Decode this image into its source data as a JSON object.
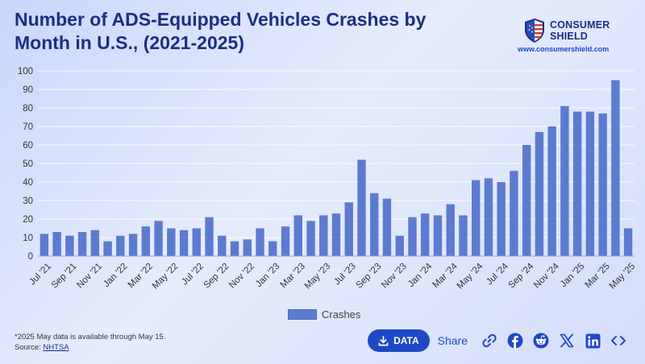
{
  "header": {
    "title": "Number of ADS-Equipped Vehicles Crashes by Month in U.S., (2021-2025)"
  },
  "brand": {
    "name_line1": "CONSUMER",
    "name_line2": "SHIELD",
    "url": "www.consumershield.com"
  },
  "chart_data": {
    "type": "bar",
    "title": "Number of ADS-Equipped Vehicles Crashes by Month in U.S., (2021-2025)",
    "categories": [
      "Jul '21",
      "Aug '21",
      "Sep '21",
      "Oct '21",
      "Nov '21",
      "Dec '21",
      "Jan '22",
      "Feb '22",
      "Mar '22",
      "Apr '22",
      "May '22",
      "Jun '22",
      "Jul '22",
      "Aug '22",
      "Sep '22",
      "Oct '22",
      "Nov '22",
      "Dec '22",
      "Jan '23",
      "Feb '23",
      "Mar '23",
      "Apr '23",
      "May '23",
      "Jun '23",
      "Jul '23",
      "Aug '23",
      "Sep '23",
      "Oct '23",
      "Nov '23",
      "Dec '23",
      "Jan '24",
      "Feb '24",
      "Mar '24",
      "Apr '24",
      "May '24",
      "Jun '24",
      "Jul '24",
      "Aug '24",
      "Sep '24",
      "Oct '24",
      "Nov '24",
      "Dec '24",
      "Jan '25",
      "Feb '25",
      "Mar '25",
      "Apr '25",
      "May '25"
    ],
    "tick_labels": [
      "Jul '21",
      "Sep '21",
      "Nov '21",
      "Jan '22",
      "Mar '22",
      "May '22",
      "Jul '22",
      "Sep '22",
      "Nov '22",
      "Jan '23",
      "Mar '23",
      "May '23",
      "Jul '23",
      "Sep '23",
      "Nov '23",
      "Jan '24",
      "Mar '24",
      "May '24",
      "Jul '24",
      "Sep '24",
      "Nov '24",
      "Jan '25",
      "Mar '25",
      "May '25"
    ],
    "series": [
      {
        "name": "Crashes",
        "values": [
          12,
          13,
          11,
          13,
          14,
          8,
          11,
          12,
          16,
          19,
          15,
          14,
          15,
          21,
          11,
          8,
          9,
          15,
          8,
          16,
          22,
          19,
          22,
          23,
          29,
          52,
          34,
          31,
          11,
          21,
          23,
          22,
          28,
          22,
          41,
          42,
          40,
          46,
          60,
          67,
          70,
          81,
          78,
          78,
          77,
          95,
          15
        ]
      }
    ],
    "xlabel": "",
    "ylabel": "",
    "ylim": [
      0,
      100
    ],
    "yticks": [
      0,
      10,
      20,
      30,
      40,
      50,
      60,
      70,
      80,
      90,
      100
    ],
    "grid": true,
    "legend": "bottom-center",
    "bar_color": "#5c7bd0"
  },
  "legend": {
    "label": "Crashes"
  },
  "footnote": {
    "note": "*2025 May data is available through May 15.",
    "source_prefix": "Source: ",
    "source_link": "NHTSA"
  },
  "actions": {
    "data_label": "DATA",
    "share_label": "Share"
  },
  "colors": {
    "title": "#1b2f82",
    "accent": "#1f48c8",
    "bar": "#5c7bd0"
  }
}
